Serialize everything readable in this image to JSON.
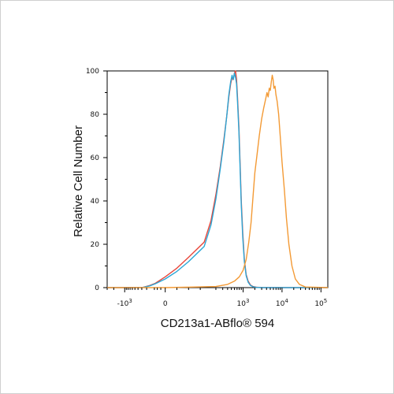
{
  "chart_data": {
    "type": "line",
    "title": "",
    "xlabel": "CD213a1-ABflo® 594",
    "ylabel": "Relative Cell Number",
    "x_scale": "biexponential",
    "xlim": [
      -3000,
      150000
    ],
    "ylim": [
      0,
      100
    ],
    "y_ticks": [
      0,
      20,
      40,
      60,
      80,
      100
    ],
    "x_ticks": [
      {
        "value": -1000,
        "label": "-10",
        "exp": "3"
      },
      {
        "value": 0,
        "label": "0",
        "exp": ""
      },
      {
        "value": 1000,
        "label": "10",
        "exp": "3"
      },
      {
        "value": 10000,
        "label": "10",
        "exp": "4"
      },
      {
        "value": 100000,
        "label": "10",
        "exp": "5"
      }
    ],
    "grid": false,
    "series": [
      {
        "color": "#e8463a",
        "x": [
          -3000,
          -300,
          -150,
          -80,
          0,
          30,
          60,
          100,
          150,
          200,
          260,
          320,
          380,
          430,
          480,
          520,
          560,
          600,
          640,
          680,
          720,
          780,
          840,
          900,
          980,
          1080,
          1200,
          1350,
          1550,
          1800,
          2200,
          3000,
          10000,
          150000
        ],
        "y": [
          0,
          0,
          1,
          2,
          5,
          9,
          14,
          21,
          31,
          43,
          56,
          68,
          79,
          88,
          94,
          97,
          96,
          99,
          100,
          96,
          88,
          74,
          57,
          40,
          25,
          13,
          6,
          3,
          1.2,
          0.5,
          0.2,
          0,
          0,
          0
        ]
      },
      {
        "color": "#2aa6d6",
        "x": [
          -3000,
          -300,
          -150,
          -80,
          0,
          30,
          60,
          100,
          150,
          200,
          260,
          320,
          380,
          430,
          480,
          520,
          560,
          600,
          640,
          680,
          720,
          780,
          840,
          900,
          980,
          1080,
          1200,
          1350,
          1550,
          1800,
          2200,
          3000,
          10000,
          150000
        ],
        "y": [
          0,
          0,
          0.8,
          1.8,
          4,
          7.5,
          12,
          19,
          29,
          41,
          55,
          67,
          79,
          89,
          95,
          98,
          96,
          99,
          97,
          94,
          86,
          72,
          55,
          38,
          23,
          12,
          5.5,
          2.5,
          1,
          0.4,
          0.1,
          0,
          0,
          0
        ]
      },
      {
        "color": "#f39a35",
        "x": [
          -3000,
          0,
          200,
          400,
          600,
          800,
          1000,
          1200,
          1400,
          1600,
          1800,
          2000,
          2300,
          2600,
          3000,
          3400,
          3800,
          4100,
          4400,
          4700,
          5000,
          5300,
          5600,
          5900,
          6200,
          6600,
          7000,
          7500,
          8200,
          9000,
          10000,
          11500,
          13000,
          15000,
          18000,
          22000,
          28000,
          40000,
          150000
        ],
        "y": [
          0,
          0,
          0.5,
          1.5,
          3,
          5,
          8,
          13,
          21,
          30,
          42,
          53,
          62,
          70,
          78,
          83,
          87,
          90,
          88,
          92,
          91,
          95,
          98,
          96,
          92,
          93,
          89,
          86,
          80,
          70,
          58,
          45,
          32,
          20,
          10,
          4,
          1.5,
          0.3,
          0
        ]
      }
    ]
  }
}
